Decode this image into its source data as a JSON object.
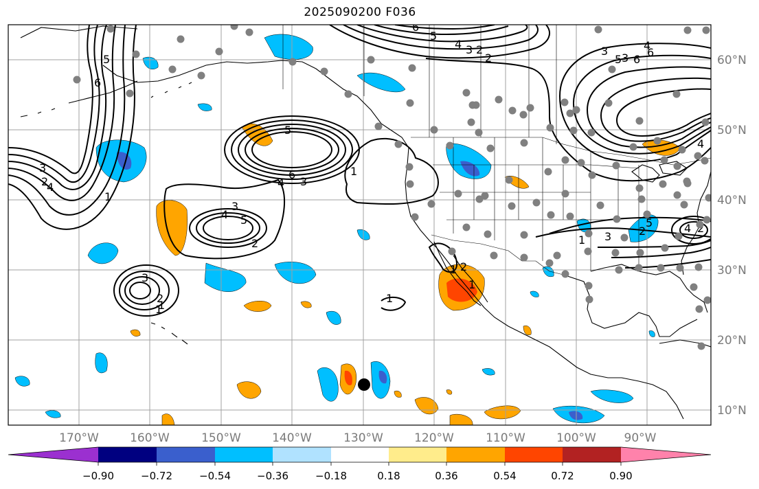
{
  "title": "2025090200 F036",
  "lon_labels": [
    "170°W",
    "160°W",
    "150°W",
    "140°W",
    "130°W",
    "120°W",
    "110°W",
    "100°W",
    "90°W"
  ],
  "lat_labels": [
    "60°N",
    "50°N",
    "40°N",
    "30°N",
    "20°N",
    "10°N"
  ],
  "colorbar": {
    "ticks": [
      "−0.90",
      "−0.72",
      "−0.54",
      "−0.36",
      "−0.18",
      "0.18",
      "0.36",
      "0.54",
      "0.72",
      "0.90"
    ],
    "colors": [
      "#9b30d0",
      "#000080",
      "#3a5fcd",
      "#00bfff",
      "#b0e2ff",
      "#ffffff",
      "#ffec8b",
      "#ffa500",
      "#ff4500",
      "#b22222",
      "#ff82ab"
    ]
  },
  "contour_labels": [
    "6",
    "5",
    "4",
    "3",
    "2",
    "5",
    "6",
    "4",
    "3",
    "1",
    "4",
    "3",
    "5",
    "2",
    "3",
    "1",
    "2",
    "1",
    "1",
    "1",
    "2",
    "1",
    "3",
    "4",
    "6",
    "2",
    "6",
    "5",
    "4",
    "3",
    "2",
    "3",
    "5",
    "6",
    "4",
    "1",
    "3",
    "2",
    "5",
    "4",
    "2",
    "1"
  ],
  "colors": {
    "coast": "#000000",
    "grid": "#a0a0a0",
    "station": "#808080",
    "storm": "#000000"
  }
}
